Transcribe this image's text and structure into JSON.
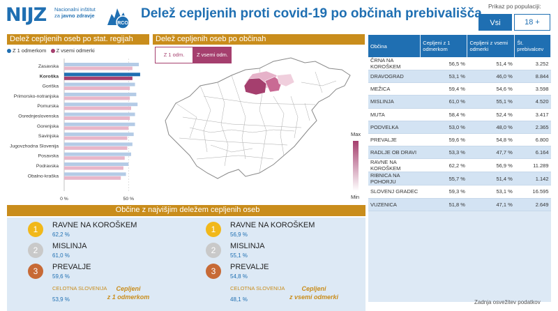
{
  "header": {
    "logo_text": "NIJZ",
    "logo_sub_1": "Nacionalni inštitut",
    "logo_sub_2": "za ",
    "logo_sub_3": "javno zdravje",
    "rco_text": "RCO",
    "title": "Delež cepljenih proti covid-19 po občinah prebivališča",
    "population_label": "Prikaz po populaciji:",
    "btn_all": "Vsi",
    "btn_18": "18 +"
  },
  "regions_section": {
    "title": "Delež cepljenih oseb po stat. regijah",
    "legend_1": "Z 1 odmerkom",
    "legend_2": "Z vsemi odmerki"
  },
  "map_section": {
    "title": "Delež cepljenih oseb po občinah",
    "tab_1": "Z 1 odm.",
    "tab_2": "Z vsemi odm.",
    "scale_max": "Max",
    "scale_min": "Min"
  },
  "chart_data": {
    "type": "bar",
    "orientation": "horizontal",
    "categories": [
      "Zasavska",
      "Koroška",
      "Goriška",
      "Primorsko-notranjska",
      "Pomurska",
      "Osrednjeslovenska",
      "Gorenjska",
      "Savinjska",
      "Jugovzhodna Slovenija",
      "Posavska",
      "Podravska",
      "Obalno-kraška"
    ],
    "highlight": "Koroška",
    "series": [
      {
        "name": "Z 1 odmerkom",
        "values": [
          58,
          59,
          55,
          56,
          57,
          55,
          55,
          54,
          53,
          52,
          50,
          48
        ]
      },
      {
        "name": "Z vsemi odmerki",
        "values": [
          53,
          53,
          51,
          51,
          52,
          51,
          50,
          49,
          49,
          47,
          46,
          44
        ]
      }
    ],
    "xticks": [
      "0 %",
      "50 %"
    ],
    "xlim": [
      0,
      65
    ],
    "colors": {
      "z1": "#e8b6c9",
      "vse": "#b4cbe6",
      "z1_hl": "#1f6fb2",
      "vse_hl": "#a53f6e"
    }
  },
  "table": {
    "headers": [
      "Občina",
      "Cepljeni z 1 odmerkom",
      "Cepljeni z vsemi odmerki",
      "Št. prebivalcev"
    ],
    "rows": [
      [
        "ČRNA NA KOROŠKEM",
        "56,5 %",
        "51,4 %",
        "3.252"
      ],
      [
        "DRAVOGRAD",
        "53,1 %",
        "46,0 %",
        "8.844"
      ],
      [
        "MEŽICA",
        "59,4 %",
        "54,6 %",
        "3.598"
      ],
      [
        "MISLINJA",
        "61,0 %",
        "55,1 %",
        "4.520"
      ],
      [
        "MUTA",
        "58,4 %",
        "52,4 %",
        "3.417"
      ],
      [
        "PODVELKA",
        "53,0 %",
        "48,0 %",
        "2.365"
      ],
      [
        "PREVALJE",
        "59,6 %",
        "54,8 %",
        "6.800"
      ],
      [
        "RADLJE OB DRAVI",
        "53,3 %",
        "47,7 %",
        "6.164"
      ],
      [
        "RAVNE NA KOROŠKEM",
        "62,2 %",
        "56,9 %",
        "11.289"
      ],
      [
        "RIBNICA NA POHORJU",
        "55,7 %",
        "51,4 %",
        "1.142"
      ],
      [
        "SLOVENJ GRADEC",
        "59,3 %",
        "53,1 %",
        "16.595"
      ],
      [
        "VUZENICA",
        "51,8 %",
        "47,1 %",
        "2.649"
      ]
    ],
    "refresh_label": "Zadnja osvežitev podatkov"
  },
  "top": {
    "title": "Občine z najvišjim deležem cepljenih oseb",
    "left": {
      "items": [
        {
          "rank": "1",
          "name": "RAVNE NA KOROŠKEM",
          "value": "62,2 %"
        },
        {
          "rank": "2",
          "name": "MISLINJA",
          "value": "61,0 %"
        },
        {
          "rank": "3",
          "name": "PREVALJE",
          "value": "59,6 %"
        }
      ],
      "slo_label": "CELOTNA SLOVENIJA",
      "slo_value": "53,9 %",
      "caption_1": "Cepljeni",
      "caption_2": "z 1 odmerkom"
    },
    "right": {
      "items": [
        {
          "rank": "1",
          "name": "RAVNE NA KOROŠKEM",
          "value": "56,9 %"
        },
        {
          "rank": "2",
          "name": "MISLINJA",
          "value": "55,1 %"
        },
        {
          "rank": "3",
          "name": "PREVALJE",
          "value": "54,8 %"
        }
      ],
      "slo_label": "CELOTNA SLOVENIJA",
      "slo_value": "48,1 %",
      "caption_1": "Cepljeni",
      "caption_2": "z vsemi odmerki"
    }
  }
}
